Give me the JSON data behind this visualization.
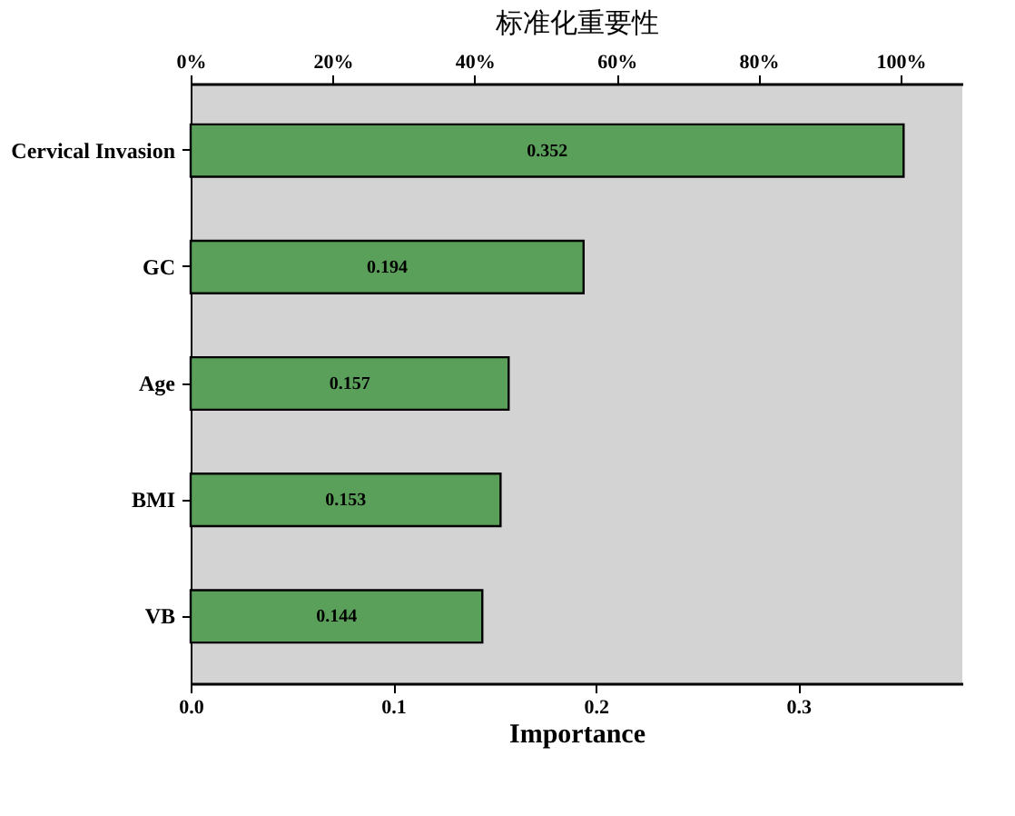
{
  "chart_data": {
    "type": "bar",
    "orientation": "horizontal",
    "categories": [
      "Cervical Invasion",
      "GC",
      "Age",
      "BMI",
      "VB"
    ],
    "values": [
      0.352,
      0.194,
      0.157,
      0.153,
      0.144
    ],
    "color": "#5aa05a",
    "data_labels": true,
    "xlabel": "Importance",
    "xlim": [
      0,
      0.381
    ],
    "xticks": [
      {
        "value": 0,
        "label": "0.0"
      },
      0.1,
      0.2,
      0.3
    ],
    "x2label": "标准化重要性",
    "x2lim": [
      0,
      108.7
    ],
    "x2ticks": [
      {
        "value": 0,
        "label": "0%"
      },
      {
        "value": 20,
        "label": "20%"
      },
      {
        "value": 40,
        "label": "40%"
      },
      {
        "value": 60,
        "label": "60%"
      },
      {
        "value": 80,
        "label": "80%"
      },
      {
        "value": 100,
        "label": "100%"
      }
    ],
    "grid": false
  }
}
